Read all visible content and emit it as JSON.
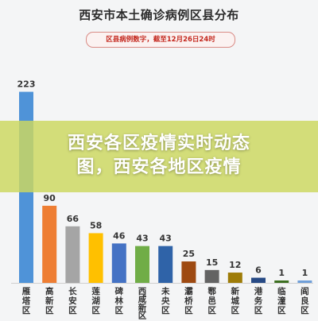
{
  "chart_data": {
    "type": "bar",
    "title": "西安市本土确诊病例区县分布",
    "subtitle": "区县病例数字，截至12月26日24时",
    "categories": [
      "雁塔区",
      "高新区",
      "长安区",
      "莲湖区",
      "碑林区",
      "西咸新区",
      "未央区",
      "灞桥区",
      "鄠邑区",
      "新城区",
      "港务区",
      "临潼区",
      "阎良区"
    ],
    "values": [
      223,
      90,
      66,
      58,
      46,
      43,
      43,
      25,
      15,
      12,
      6,
      1,
      1
    ],
    "colors": [
      "#4f93d8",
      "#ee7e33",
      "#a5a5a5",
      "#ffc000",
      "#4472c4",
      "#70ad47",
      "#2f63a8",
      "#9e4a12",
      "#636363",
      "#9e7c08",
      "#274a85",
      "#3c6f20",
      "#6f9fd9"
    ],
    "ylim": [
      0,
      230
    ],
    "grid": false
  },
  "overlay": {
    "line1": "西安各区疫情实时动态",
    "line2": "图，西安各地区疫情"
  }
}
